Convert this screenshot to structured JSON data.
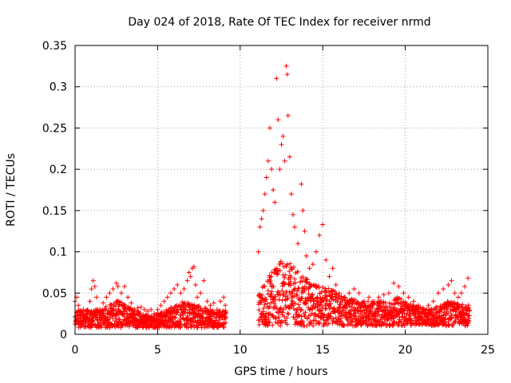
{
  "chart_data": {
    "type": "scatter",
    "title": "Day 024 of 2018, Rate Of TEC Index for receiver nrmd",
    "xlabel": "GPS time / hours",
    "ylabel": "ROTI / TECUs",
    "xlim": [
      0,
      25
    ],
    "ylim": [
      0,
      0.35
    ],
    "x_ticks": [
      "0",
      "5",
      "10",
      "15",
      "20",
      "25"
    ],
    "y_ticks": [
      "0",
      "0.05",
      "0.1",
      "0.15",
      "0.2",
      "0.25",
      "0.3",
      "0.35"
    ],
    "x_tick_values": [
      0,
      5,
      10,
      15,
      20,
      25
    ],
    "y_tick_values": [
      0,
      0.05,
      0.1,
      0.15,
      0.2,
      0.25,
      0.3,
      0.35
    ],
    "grid": true,
    "marker": "+",
    "marker_color": "#ff0000",
    "series": [
      {
        "points": [
          [
            0.0,
            0.04
          ],
          [
            0.1,
            0.045
          ],
          [
            0.2,
            0.035
          ],
          [
            0.3,
            0.028
          ],
          [
            0.5,
            0.03
          ],
          [
            0.7,
            0.025
          ],
          [
            0.9,
            0.04
          ],
          [
            1.0,
            0.055
          ],
          [
            1.1,
            0.065
          ],
          [
            1.2,
            0.058
          ],
          [
            1.3,
            0.045
          ],
          [
            1.5,
            0.03
          ],
          [
            1.7,
            0.038
          ],
          [
            1.9,
            0.045
          ],
          [
            2.1,
            0.05
          ],
          [
            2.3,
            0.055
          ],
          [
            2.5,
            0.062
          ],
          [
            2.6,
            0.058
          ],
          [
            2.8,
            0.05
          ],
          [
            3.0,
            0.058
          ],
          [
            3.2,
            0.045
          ],
          [
            3.4,
            0.038
          ],
          [
            3.6,
            0.03
          ],
          [
            3.8,
            0.032
          ],
          [
            4.0,
            0.033
          ],
          [
            4.2,
            0.03
          ],
          [
            4.4,
            0.028
          ],
          [
            4.6,
            0.03
          ],
          [
            4.8,
            0.025
          ],
          [
            5.0,
            0.03
          ],
          [
            5.2,
            0.035
          ],
          [
            5.4,
            0.04
          ],
          [
            5.6,
            0.045
          ],
          [
            5.8,
            0.05
          ],
          [
            6.0,
            0.055
          ],
          [
            6.2,
            0.06
          ],
          [
            6.4,
            0.05
          ],
          [
            6.6,
            0.055
          ],
          [
            6.8,
            0.065
          ],
          [
            6.9,
            0.075
          ],
          [
            7.0,
            0.07
          ],
          [
            7.1,
            0.08
          ],
          [
            7.2,
            0.082
          ],
          [
            7.3,
            0.06
          ],
          [
            7.4,
            0.045
          ],
          [
            7.6,
            0.05
          ],
          [
            7.8,
            0.065
          ],
          [
            8.0,
            0.04
          ],
          [
            8.2,
            0.035
          ],
          [
            8.4,
            0.038
          ],
          [
            8.6,
            0.03
          ],
          [
            8.8,
            0.04
          ],
          [
            9.0,
            0.045
          ],
          [
            9.1,
            0.035
          ],
          [
            11.1,
            0.1
          ],
          [
            11.2,
            0.13
          ],
          [
            11.3,
            0.14
          ],
          [
            11.4,
            0.15
          ],
          [
            11.5,
            0.17
          ],
          [
            11.6,
            0.19
          ],
          [
            11.7,
            0.21
          ],
          [
            11.8,
            0.25
          ],
          [
            11.9,
            0.2
          ],
          [
            12.0,
            0.175
          ],
          [
            12.1,
            0.16
          ],
          [
            12.2,
            0.31
          ],
          [
            12.3,
            0.26
          ],
          [
            12.4,
            0.2
          ],
          [
            12.5,
            0.23
          ],
          [
            12.6,
            0.24
          ],
          [
            12.7,
            0.21
          ],
          [
            12.8,
            0.325
          ],
          [
            12.85,
            0.315
          ],
          [
            12.9,
            0.265
          ],
          [
            13.0,
            0.215
          ],
          [
            13.1,
            0.17
          ],
          [
            13.2,
            0.145
          ],
          [
            13.3,
            0.13
          ],
          [
            13.5,
            0.11
          ],
          [
            13.7,
            0.182
          ],
          [
            13.8,
            0.15
          ],
          [
            13.9,
            0.125
          ],
          [
            14.0,
            0.095
          ],
          [
            14.2,
            0.08
          ],
          [
            14.4,
            0.085
          ],
          [
            14.6,
            0.1
          ],
          [
            14.8,
            0.12
          ],
          [
            15.0,
            0.133
          ],
          [
            15.2,
            0.09
          ],
          [
            15.4,
            0.07
          ],
          [
            15.6,
            0.08
          ],
          [
            15.8,
            0.06
          ],
          [
            16.0,
            0.05
          ],
          [
            16.3,
            0.045
          ],
          [
            16.6,
            0.05
          ],
          [
            16.9,
            0.055
          ],
          [
            17.2,
            0.05
          ],
          [
            17.5,
            0.04
          ],
          [
            17.8,
            0.045
          ],
          [
            18.1,
            0.04
          ],
          [
            18.4,
            0.045
          ],
          [
            18.7,
            0.048
          ],
          [
            19.0,
            0.05
          ],
          [
            19.3,
            0.062
          ],
          [
            19.6,
            0.058
          ],
          [
            19.9,
            0.05
          ],
          [
            20.2,
            0.045
          ],
          [
            20.5,
            0.04
          ],
          [
            20.8,
            0.035
          ],
          [
            21.1,
            0.03
          ],
          [
            21.4,
            0.035
          ],
          [
            21.7,
            0.04
          ],
          [
            22.0,
            0.05
          ],
          [
            22.3,
            0.055
          ],
          [
            22.6,
            0.06
          ],
          [
            22.8,
            0.065
          ],
          [
            23.0,
            0.05
          ],
          [
            23.2,
            0.045
          ],
          [
            23.4,
            0.05
          ],
          [
            23.6,
            0.058
          ],
          [
            23.8,
            0.068
          ]
        ]
      }
    ],
    "dense_bands": [
      {
        "x": [
          0.0,
          9.1
        ],
        "ymin": 0.008,
        "peaks": [
          [
            0.0,
            0.03
          ],
          [
            1.5,
            0.03
          ],
          [
            2.5,
            0.042
          ],
          [
            3.5,
            0.03
          ],
          [
            4.5,
            0.022
          ],
          [
            5.5,
            0.03
          ],
          [
            6.5,
            0.04
          ],
          [
            7.5,
            0.035
          ],
          [
            8.5,
            0.028
          ],
          [
            9.1,
            0.03
          ]
        ]
      },
      {
        "x": [
          11.1,
          23.9
        ],
        "ymin": 0.01,
        "peaks": [
          [
            11.1,
            0.05
          ],
          [
            12.0,
            0.08
          ],
          [
            12.8,
            0.095
          ],
          [
            13.5,
            0.075
          ],
          [
            14.5,
            0.06
          ],
          [
            15.5,
            0.055
          ],
          [
            16.5,
            0.045
          ],
          [
            17.5,
            0.04
          ],
          [
            18.5,
            0.04
          ],
          [
            19.5,
            0.045
          ],
          [
            20.5,
            0.035
          ],
          [
            21.5,
            0.03
          ],
          [
            22.5,
            0.04
          ],
          [
            23.9,
            0.035
          ]
        ]
      }
    ]
  }
}
